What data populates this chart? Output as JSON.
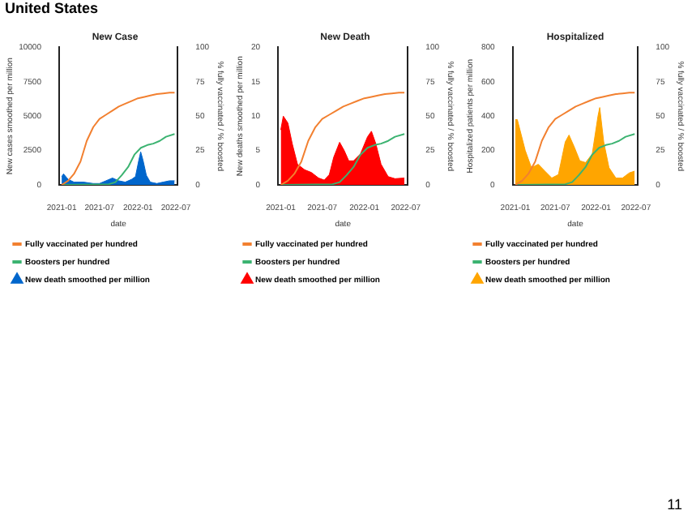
{
  "chart_data": [
    {
      "type": "area",
      "title": "New Case",
      "xlabel": "date",
      "ylabel": "New cases smoothed per million",
      "y2label": "% fully vaccinated / % boosted",
      "annotations": [
        "United States"
      ],
      "xlim": [
        "2020-12-20",
        "2022-07-10"
      ],
      "xticks": [
        "2021-01",
        "2021-07",
        "2022-01",
        "2022-07"
      ],
      "ylim": [
        0,
        10000
      ],
      "yticks": [
        0,
        2500,
        5000,
        7500,
        10000
      ],
      "y2lim": [
        0,
        100
      ],
      "y2ticks": [
        0,
        25,
        50,
        75,
        100
      ],
      "grid": false,
      "legend": "bottom",
      "series": [
        {
          "name": "Fully vaccinated per hundred",
          "type": "line",
          "axis": "y2",
          "color": "#f28030",
          "x": [
            "2021-01-01",
            "2021-02-01",
            "2021-03-01",
            "2021-04-01",
            "2021-05-01",
            "2021-06-01",
            "2021-07-01",
            "2021-08-01",
            "2021-09-01",
            "2021-10-01",
            "2021-11-01",
            "2021-12-01",
            "2022-01-01",
            "2022-02-01",
            "2022-03-01",
            "2022-04-01",
            "2022-05-01",
            "2022-06-01",
            "2022-06-25"
          ],
          "values": [
            0,
            3,
            8,
            17,
            32,
            42,
            48,
            51,
            54,
            57,
            59,
            61,
            63,
            64,
            65,
            66,
            66.5,
            67,
            67
          ]
        },
        {
          "name": "Boosters per hundred",
          "type": "line",
          "axis": "y2",
          "color": "#3cb371",
          "x": [
            "2021-01-01",
            "2021-08-15",
            "2021-09-15",
            "2021-10-15",
            "2021-11-15",
            "2021-12-15",
            "2022-01-15",
            "2022-02-15",
            "2022-03-15",
            "2022-04-15",
            "2022-05-15",
            "2022-06-25"
          ],
          "values": [
            0,
            0.5,
            2,
            7,
            13,
            22,
            27,
            29,
            30,
            32,
            35,
            37
          ]
        },
        {
          "name": "New death smoothed per million",
          "color": "#0066cc",
          "x": [
            "2021-01-01",
            "2021-01-10",
            "2021-02-01",
            "2021-03-01",
            "2021-04-15",
            "2021-06-01",
            "2021-07-01",
            "2021-08-01",
            "2021-09-01",
            "2021-10-01",
            "2021-11-01",
            "2021-12-01",
            "2021-12-20",
            "2022-01-05",
            "2022-01-14",
            "2022-01-25",
            "2022-02-10",
            "2022-03-01",
            "2022-04-01",
            "2022-05-01",
            "2022-06-01",
            "2022-06-25"
          ],
          "values": [
            600,
            800,
            400,
            200,
            200,
            100,
            100,
            300,
            500,
            300,
            200,
            400,
            600,
            1800,
            2400,
            1800,
            700,
            200,
            100,
            200,
            300,
            300
          ]
        }
      ]
    },
    {
      "type": "area",
      "title": "New Death",
      "xlabel": "date",
      "ylabel": "New deaths smoothed per million",
      "y2label": "% fully vaccinated / % boosted",
      "xlim": [
        "2020-12-20",
        "2022-07-10"
      ],
      "xticks": [
        "2021-01",
        "2021-07",
        "2022-01",
        "2022-07"
      ],
      "ylim": [
        0,
        20
      ],
      "yticks": [
        0,
        5,
        10,
        15,
        20
      ],
      "y2lim": [
        0,
        100
      ],
      "y2ticks": [
        0,
        25,
        50,
        75,
        100
      ],
      "grid": false,
      "legend": "bottom",
      "series": [
        {
          "name": "Fully vaccinated per hundred",
          "type": "line",
          "axis": "y2",
          "color": "#f28030",
          "x": [
            "2021-01-01",
            "2021-02-01",
            "2021-03-01",
            "2021-04-01",
            "2021-05-01",
            "2021-06-01",
            "2021-07-01",
            "2021-08-01",
            "2021-09-01",
            "2021-10-01",
            "2021-11-01",
            "2021-12-01",
            "2022-01-01",
            "2022-02-01",
            "2022-03-01",
            "2022-04-01",
            "2022-05-01",
            "2022-06-01",
            "2022-06-25"
          ],
          "values": [
            0,
            3,
            8,
            17,
            32,
            42,
            48,
            51,
            54,
            57,
            59,
            61,
            63,
            64,
            65,
            66,
            66.5,
            67,
            67
          ]
        },
        {
          "name": "Boosters per hundred",
          "type": "line",
          "axis": "y2",
          "color": "#3cb371",
          "x": [
            "2021-01-01",
            "2021-08-15",
            "2021-09-15",
            "2021-10-15",
            "2021-11-15",
            "2021-12-15",
            "2022-01-15",
            "2022-02-15",
            "2022-03-15",
            "2022-04-15",
            "2022-05-15",
            "2022-06-25"
          ],
          "values": [
            0,
            0.5,
            2,
            7,
            13,
            22,
            27,
            29,
            30,
            32,
            35,
            37
          ]
        },
        {
          "name": "New death smoothed per million",
          "color": "#ff0000",
          "x": [
            "2021-01-01",
            "2021-01-12",
            "2021-02-01",
            "2021-02-20",
            "2021-03-15",
            "2021-04-15",
            "2021-05-15",
            "2021-06-15",
            "2021-07-10",
            "2021-08-01",
            "2021-08-20",
            "2021-09-15",
            "2021-10-05",
            "2021-10-25",
            "2021-11-15",
            "2021-12-15",
            "2022-01-15",
            "2022-02-01",
            "2022-02-20",
            "2022-03-15",
            "2022-04-15",
            "2022-05-15",
            "2022-06-25"
          ],
          "values": [
            8,
            10,
            9,
            6,
            3,
            2.2,
            1.8,
            1,
            0.7,
            1.5,
            4,
            6.2,
            5,
            3.5,
            3.5,
            4.5,
            7,
            7.8,
            6,
            3,
            1.2,
            0.9,
            1
          ]
        }
      ]
    },
    {
      "type": "area",
      "title": "Hospitalized",
      "xlabel": "date",
      "ylabel": "Hospitalized patients per million",
      "y2label": "% fully vaccinated / % boosted",
      "annotations": [
        "11"
      ],
      "xlim": [
        "2020-12-20",
        "2022-07-10"
      ],
      "xticks": [
        "2021-01",
        "2021-07",
        "2022-01",
        "2022-07"
      ],
      "ylim": [
        0,
        800
      ],
      "yticks": [
        0,
        200,
        400,
        600,
        800
      ],
      "y2lim": [
        0,
        100
      ],
      "y2ticks": [
        0,
        25,
        50,
        75,
        100
      ],
      "grid": false,
      "legend": "bottom",
      "series": [
        {
          "name": "Fully vaccinated per hundred",
          "type": "line",
          "axis": "y2",
          "color": "#f28030",
          "x": [
            "2021-01-01",
            "2021-02-01",
            "2021-03-01",
            "2021-04-01",
            "2021-05-01",
            "2021-06-01",
            "2021-07-01",
            "2021-08-01",
            "2021-09-01",
            "2021-10-01",
            "2021-11-01",
            "2021-12-01",
            "2022-01-01",
            "2022-02-01",
            "2022-03-01",
            "2022-04-01",
            "2022-05-01",
            "2022-06-01",
            "2022-06-25"
          ],
          "values": [
            0,
            3,
            8,
            17,
            32,
            42,
            48,
            51,
            54,
            57,
            59,
            61,
            63,
            64,
            65,
            66,
            66.5,
            67,
            67
          ]
        },
        {
          "name": "Boosters per hundred",
          "type": "line",
          "axis": "y2",
          "color": "#3cb371",
          "x": [
            "2021-01-01",
            "2021-08-15",
            "2021-09-15",
            "2021-10-15",
            "2021-11-15",
            "2021-12-15",
            "2022-01-15",
            "2022-02-15",
            "2022-03-15",
            "2022-04-15",
            "2022-05-15",
            "2022-06-25"
          ],
          "values": [
            0,
            0.5,
            2,
            7,
            13,
            22,
            27,
            29,
            30,
            32,
            35,
            37
          ]
        },
        {
          "name": "New death smoothed per million",
          "color": "#ffa500",
          "x": [
            "2021-01-01",
            "2021-01-10",
            "2021-02-15",
            "2021-03-15",
            "2021-04-15",
            "2021-05-15",
            "2021-06-15",
            "2021-07-15",
            "2021-08-15",
            "2021-09-01",
            "2021-09-25",
            "2021-10-20",
            "2021-11-15",
            "2021-12-15",
            "2022-01-10",
            "2022-01-18",
            "2022-02-05",
            "2022-03-01",
            "2022-04-01",
            "2022-05-01",
            "2022-06-01",
            "2022-06-25"
          ],
          "values": [
            380,
            380,
            200,
            100,
            120,
            80,
            40,
            60,
            250,
            290,
            220,
            140,
            130,
            180,
            400,
            450,
            250,
            100,
            40,
            40,
            70,
            80
          ]
        }
      ]
    }
  ]
}
